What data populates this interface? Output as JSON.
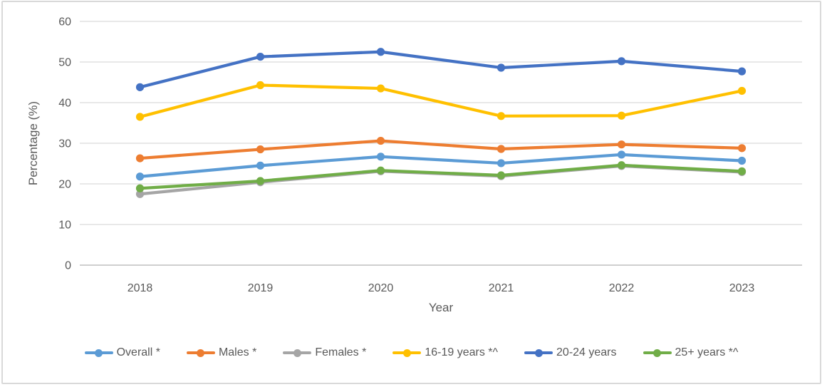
{
  "chart_data": {
    "type": "line",
    "title": "",
    "xlabel": "Year",
    "ylabel": "Percentage (%)",
    "categories": [
      "2018",
      "2019",
      "2020",
      "2021",
      "2022",
      "2023"
    ],
    "y_ticks": [
      0,
      10,
      20,
      30,
      40,
      50,
      60
    ],
    "ylim": [
      0,
      60
    ],
    "grid": true,
    "legend_position": "bottom",
    "marker": "circle",
    "series": [
      {
        "name": "Overall *",
        "color": "#5B9BD5",
        "values": [
          21.8,
          24.5,
          26.7,
          25.1,
          27.2,
          25.7
        ]
      },
      {
        "name": "Males *",
        "color": "#ED7D31",
        "values": [
          26.3,
          28.5,
          30.6,
          28.6,
          29.7,
          28.8
        ]
      },
      {
        "name": "Females *",
        "color": "#A5A5A5",
        "values": [
          17.5,
          20.4,
          23.1,
          21.9,
          24.4,
          22.9
        ]
      },
      {
        "name": "16-19 years *^",
        "color": "#FFC000",
        "values": [
          36.5,
          44.3,
          43.5,
          36.7,
          36.8,
          42.9
        ]
      },
      {
        "name": "20-24 years",
        "color": "#4472C4",
        "values": [
          43.8,
          51.3,
          52.5,
          48.6,
          50.2,
          47.7
        ]
      },
      {
        "name": "25+ years *^",
        "color": "#70AD47",
        "values": [
          18.9,
          20.7,
          23.3,
          22.1,
          24.6,
          23.1
        ]
      }
    ]
  },
  "style_colors": {
    "gridline": "#D9D9D9",
    "axis_line": "#BFBFBF",
    "text": "#595959",
    "frame_border": "#D9D9D9",
    "background": "#FFFFFF"
  }
}
